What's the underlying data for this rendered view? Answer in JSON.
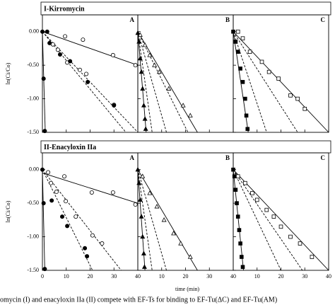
{
  "chart_data": {
    "type": "scatter",
    "x_label": "time (min)",
    "xlim": [
      0,
      40
    ],
    "xticks": [
      0,
      10,
      20,
      30,
      40
    ],
    "caption": "omycin (I) and enacyloxin IIa (II) compete with EF-Ts for binding to EF-Tu(ΔC) and EF-Tu(AM)",
    "rows": [
      {
        "title": "I-Kirromycin",
        "y_label": "ln(Ci/Co)",
        "ylim": [
          -1.5,
          0.25
        ],
        "yticks": [
          {
            "value": 0,
            "label": "0.00"
          },
          {
            "value": -0.5,
            "label": "-0.50"
          },
          {
            "value": -1,
            "label": "-1.00"
          },
          {
            "value": -1.5,
            "label": "-1.50"
          }
        ],
        "panels": [
          {
            "label": "A",
            "series": [
              {
                "marker": "circle-filled",
                "x": [
                  0,
                  0.5,
                  1,
                  2
                ],
                "values": [
                  0,
                  -0.7,
                  -1.48,
                  0
                ]
              },
              {
                "marker": "circle-open",
                "x": [
                  9.5,
                  17,
                  29.6,
                  39
                ],
                "values": [
                  -0.07,
                  -0.12,
                  -0.35,
                  -0.5
                ]
              },
              {
                "marker": "circle-open",
                "x": [
                  4.4,
                  6.5,
                  10.4,
                  15.7,
                  18.4,
                  30
                ],
                "values": [
                  -0.19,
                  -0.27,
                  -0.46,
                  -0.57,
                  -0.63,
                  -1.09
                ]
              },
              {
                "marker": "circle-filled",
                "x": [
                  3,
                  7.4,
                  11.6,
                  19,
                  30
                ],
                "values": [
                  -0.17,
                  -0.34,
                  -0.44,
                  -0.75,
                  -1.1
                ]
              }
            ],
            "lines": [
              {
                "style": "solid",
                "x": [
                  0,
                  1.2
                ],
                "values": [
                  0,
                  -1.5
                ]
              },
              {
                "style": "solid",
                "x": [
                  0,
                  40
                ],
                "values": [
                  0,
                  -0.5
                ]
              },
              {
                "style": "dashed",
                "x": [
                  0,
                  40
                ],
                "values": [
                  0,
                  -1.5
                ]
              },
              {
                "style": "dashed",
                "x": [
                  0,
                  35
                ],
                "values": [
                  0,
                  -1.5
                ]
              }
            ]
          },
          {
            "label": "B",
            "series": [
              {
                "marker": "triangle-filled",
                "x": [
                  0,
                  0.5,
                  1,
                  1.5,
                  2,
                  2.5,
                  3,
                  3.3
                ],
                "values": [
                  -0.02,
                  -0.15,
                  -0.4,
                  -0.6,
                  -0.85,
                  -1.1,
                  -1.3,
                  -1.45
                ]
              },
              {
                "marker": "triangle-open",
                "x": [
                  1,
                  3,
                  5,
                  7,
                  9,
                  13,
                  19,
                  22
                ],
                "values": [
                  -0.05,
                  -0.2,
                  -0.35,
                  -0.5,
                  -0.6,
                  -0.85,
                  -1.1,
                  -1.25
                ]
              }
            ],
            "lines": [
              {
                "style": "solid",
                "x": [
                  0,
                  3.5
                ],
                "values": [
                  0,
                  -1.5
                ]
              },
              {
                "style": "solid",
                "x": [
                  0,
                  25
                ],
                "values": [
                  0,
                  -1.5
                ]
              },
              {
                "style": "dashed",
                "x": [
                  0,
                  6
                ],
                "values": [
                  0,
                  -1.5
                ]
              },
              {
                "style": "dashed",
                "x": [
                  0,
                  12
                ],
                "values": [
                  0,
                  -1.5
                ]
              },
              {
                "style": "dashed",
                "x": [
                  0,
                  21
                ],
                "values": [
                  0,
                  -1.5
                ]
              }
            ]
          },
          {
            "label": "C",
            "series": [
              {
                "marker": "square-filled",
                "x": [
                  0,
                  1,
                  2,
                  3,
                  4,
                  5,
                  5.5,
                  6
                ],
                "values": [
                  0,
                  -0.15,
                  -0.3,
                  -0.55,
                  -0.75,
                  -1.0,
                  -1.25,
                  -1.45
                ]
              },
              {
                "marker": "square-open",
                "x": [
                  2,
                  4,
                  7,
                  12,
                  15,
                  19,
                  24,
                  27,
                  30
                ],
                "values": [
                  0,
                  -0.1,
                  -0.3,
                  -0.45,
                  -0.6,
                  -0.7,
                  -0.95,
                  -1.0,
                  -1.15
                ]
              }
            ],
            "lines": [
              {
                "style": "solid",
                "x": [
                  0,
                  6.3
                ],
                "values": [
                  0,
                  -1.5
                ]
              },
              {
                "style": "solid",
                "x": [
                  0,
                  40
                ],
                "values": [
                  0,
                  -1.5
                ]
              },
              {
                "style": "dashed",
                "x": [
                  0,
                  14
                ],
                "values": [
                  0,
                  -1.5
                ]
              },
              {
                "style": "dashed",
                "x": [
                  0,
                  27
                ],
                "values": [
                  0,
                  -1.5
                ]
              }
            ]
          }
        ]
      },
      {
        "title": "II-Enacyloxin IIa",
        "y_label": "ln(Ci/Co)",
        "ylim": [
          -1.5,
          0.25
        ],
        "yticks": [
          {
            "value": 0,
            "label": "0.00"
          },
          {
            "value": -0.5,
            "label": "-0.50"
          },
          {
            "value": -1,
            "label": "-1.00"
          },
          {
            "value": -1.5,
            "label": "-1.50"
          }
        ],
        "panels": [
          {
            "label": "A",
            "series": [
              {
                "marker": "circle-filled",
                "x": [
                  0,
                  0.5,
                  1
                ],
                "values": [
                  0,
                  -0.5,
                  -1.48
                ]
              },
              {
                "marker": "circle-open",
                "x": [
                  2.4,
                  9.2,
                  20.7,
                  29.6,
                  39
                ],
                "values": [
                  -0.04,
                  -0.1,
                  -0.34,
                  -0.34,
                  -0.52
                ]
              },
              {
                "marker": "circle-open",
                "x": [
                  3.6,
                  5.9,
                  9.8,
                  14,
                  21,
                  25
                ],
                "values": [
                  -0.2,
                  -0.33,
                  -0.47,
                  -0.7,
                  -0.98,
                  -1.1
                ]
              },
              {
                "marker": "circle-filled",
                "x": [
                  3.9,
                  8.3,
                  10.4,
                  17.8,
                  18.7
                ],
                "values": [
                  -0.46,
                  -0.7,
                  -0.84,
                  -1.17,
                  -1.29
                ]
              }
            ],
            "lines": [
              {
                "style": "solid",
                "x": [
                  0,
                  1
                ],
                "values": [
                  0,
                  -1.5
                ]
              },
              {
                "style": "solid",
                "x": [
                  0,
                  40
                ],
                "values": [
                  -0.05,
                  -0.5
                ]
              },
              {
                "style": "dashed",
                "x": [
                  0,
                  33
                ],
                "values": [
                  0,
                  -1.5
                ]
              },
              {
                "style": "dashed",
                "x": [
                  0,
                  21
                ],
                "values": [
                  0,
                  -1.5
                ]
              }
            ]
          },
          {
            "label": "B",
            "series": [
              {
                "marker": "triangle-filled",
                "x": [
                  0,
                  0.5,
                  1,
                  1.5,
                  2,
                  2.5,
                  2.8
                ],
                "values": [
                  0,
                  -0.2,
                  -0.45,
                  -0.7,
                  -1.0,
                  -1.25,
                  -1.45
                ]
              },
              {
                "marker": "triangle-open",
                "x": [
                  2,
                  5,
                  8,
                  11,
                  15,
                  18,
                  22
                ],
                "values": [
                  -0.1,
                  -0.35,
                  -0.55,
                  -0.75,
                  -0.95,
                  -1.1,
                  -1.3
                ]
              }
            ],
            "lines": [
              {
                "style": "solid",
                "x": [
                  0,
                  3
                ],
                "values": [
                  0,
                  -1.5
                ]
              },
              {
                "style": "solid",
                "x": [
                  0,
                  25
                ],
                "values": [
                  0,
                  -1.5
                ]
              },
              {
                "style": "dashed",
                "x": [
                  0,
                  6
                ],
                "values": [
                  0,
                  -1.5
                ]
              },
              {
                "style": "dashed",
                "x": [
                  0,
                  12
                ],
                "values": [
                  0,
                  -1.5
                ]
              }
            ]
          },
          {
            "label": "C",
            "series": [
              {
                "marker": "square-filled",
                "x": [
                  0,
                  0.5,
                  1,
                  1.5,
                  2,
                  2.5,
                  3,
                  3.5,
                  4
                ],
                "values": [
                  0,
                  -0.1,
                  -0.3,
                  -0.5,
                  -0.7,
                  -0.9,
                  -1.1,
                  -1.3,
                  -1.45
                ]
              },
              {
                "marker": "square-open",
                "x": [
                  2,
                  5,
                  8,
                  10,
                  14,
                  17,
                  20,
                  24,
                  28,
                  33
                ],
                "values": [
                  -0.1,
                  -0.2,
                  -0.35,
                  -0.45,
                  -0.6,
                  -0.7,
                  -0.85,
                  -1.0,
                  -1.1,
                  -1.3
                ]
              }
            ],
            "lines": [
              {
                "style": "solid",
                "x": [
                  0,
                  4.3
                ],
                "values": [
                  0,
                  -1.5
                ]
              },
              {
                "style": "solid",
                "x": [
                  0,
                  40
                ],
                "values": [
                  0,
                  -1.5
                ]
              },
              {
                "style": "dashed",
                "x": [
                  0,
                  20
                ],
                "values": [
                  0,
                  -1.5
                ]
              },
              {
                "style": "dashed",
                "x": [
                  0,
                  29
                ],
                "values": [
                  0,
                  -1.5
                ]
              }
            ]
          }
        ]
      }
    ]
  }
}
